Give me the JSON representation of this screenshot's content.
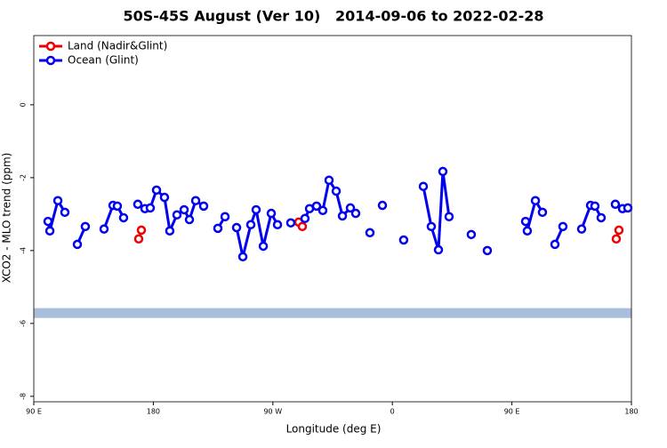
{
  "chart_data": {
    "type": "line",
    "title": "50S-45S August (Ver 10)   2014-09-06 to 2022-02-28",
    "x_label": "Longitude (deg E)",
    "y_label": "XCO2 - MLO trend (ppm)",
    "xlim": [
      90,
      540
    ],
    "ylim": [
      -8.15,
      1.9
    ],
    "xticks": [
      {
        "value": 90,
        "label": "90 E"
      },
      180,
      {
        "value": 270,
        "label": "90 W"
      },
      {
        "value": 360,
        "label": "0"
      },
      {
        "value": 450,
        "label": "90 E"
      },
      {
        "value": 540,
        "label": "180"
      }
    ],
    "yticks": [
      0,
      -2,
      -4,
      -6,
      -8
    ],
    "band_ylim": [
      -5.85,
      -5.58
    ],
    "band_color": "#a8bfdc",
    "legend": "top-left",
    "series": [
      {
        "name": "Land (Nadir&Glint)",
        "color": "#ee0000",
        "x": [
          169.0,
          171.0,
          null,
          289.5,
          292.2,
          null,
          528.6,
          530.6
        ],
        "values": [
          -3.68,
          -3.44,
          null,
          -3.22,
          -3.34,
          null,
          -3.68,
          -3.44
        ]
      },
      {
        "name": "Ocean (Glint)",
        "color": "#0000ee",
        "x": [
          100.7,
          102.1,
          108.1,
          113.4,
          null,
          122.8,
          128.8,
          null,
          142.9,
          149.6,
          152.9,
          157.6,
          null,
          168.3,
          173.7,
          177.7,
          182.4,
          188.4,
          192.4,
          197.8,
          203.2,
          207.2,
          211.9,
          217.9,
          null,
          228.6,
          234.0,
          null,
          242.7,
          247.4,
          253.4,
          257.4,
          262.8,
          268.8,
          273.5,
          null,
          283.5,
          null,
          294.2,
          297.6,
          302.9,
          307.6,
          312.3,
          317.7,
          322.4,
          328.4,
          332.4,
          null,
          343.1,
          null,
          352.5,
          null,
          368.5,
          null,
          383.3,
          389.3,
          394.7,
          398.0,
          402.7,
          null,
          419.4,
          null,
          431.5,
          null,
          460.3,
          461.6,
          467.7,
          473.0,
          null,
          482.4,
          488.4,
          null,
          502.5,
          509.2,
          512.5,
          517.2,
          null,
          527.9,
          533.3,
          537.3
        ],
        "values": [
          -3.2,
          -3.46,
          -2.63,
          -2.95,
          null,
          -3.83,
          -3.34,
          null,
          -3.41,
          -2.76,
          -2.78,
          -3.1,
          null,
          -2.73,
          -2.85,
          -2.83,
          -2.34,
          -2.54,
          -3.46,
          -3.02,
          -2.88,
          -3.15,
          -2.63,
          -2.78,
          null,
          -3.39,
          -3.07,
          null,
          -3.37,
          -4.17,
          -3.29,
          -2.88,
          -3.88,
          -2.98,
          -3.29,
          null,
          -3.24,
          null,
          -3.12,
          -2.85,
          -2.78,
          -2.9,
          -2.07,
          -2.37,
          -3.05,
          -2.83,
          -2.98,
          null,
          -3.51,
          null,
          -2.76,
          null,
          -3.71,
          null,
          -2.24,
          -3.34,
          -3.98,
          -1.83,
          -3.07,
          null,
          -3.56,
          null,
          -4.0,
          null,
          -3.2,
          -3.46,
          -2.63,
          -2.95,
          null,
          -3.83,
          -3.34,
          null,
          -3.41,
          -2.76,
          -2.78,
          -3.1,
          null,
          -2.73,
          -2.85,
          -2.83
        ]
      }
    ]
  }
}
